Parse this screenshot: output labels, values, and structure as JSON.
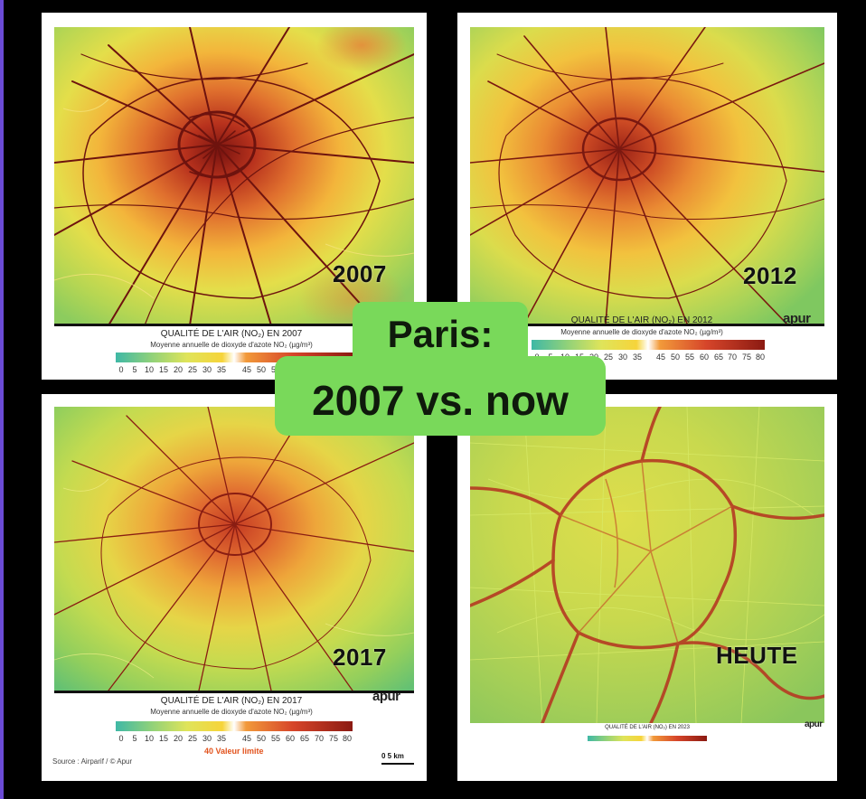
{
  "headline": {
    "line1": "Paris:",
    "line2": "2007 vs. now"
  },
  "colors": {
    "accent_green": "#79d95a",
    "scale_low": "#3fb8a6",
    "scale_high": "#8b1a12"
  },
  "legend_ticks_low": [
    "0",
    "5",
    "10",
    "15",
    "20",
    "25",
    "30",
    "35"
  ],
  "legend_ticks_high": [
    "45",
    "50",
    "55",
    "60",
    "65",
    "70",
    "75",
    "80"
  ],
  "panels": [
    {
      "year": "2007",
      "legend_title": "QUALITÉ DE L'AIR (NO₂) EN 2007",
      "legend_sub": "Moyenne annuelle de dioxyde d'azote NO₂ (µg/m³)",
      "logo": ""
    },
    {
      "year": "2012",
      "legend_title": "QUALITÉ DE L'AIR (NO₂) EN 2012",
      "legend_sub": "Moyenne annuelle de dioxyde d'azote NO₂ (µg/m³)",
      "logo": "apur"
    },
    {
      "year": "2017",
      "legend_title": "QUALITÉ DE L'AIR (NO₂) EN 2017",
      "legend_sub": "Moyenne annuelle de dioxyde d'azote NO₂ (µg/m³)",
      "logo": "apur",
      "limit_label": "40 Valeur limite",
      "source": "Source : Airparif / © Apur",
      "scale_label": "0     5 km"
    },
    {
      "year": "HEUTE",
      "legend_title": "QUALITÉ DE L'AIR (NO₂) EN 2023",
      "logo": "apur"
    }
  ]
}
